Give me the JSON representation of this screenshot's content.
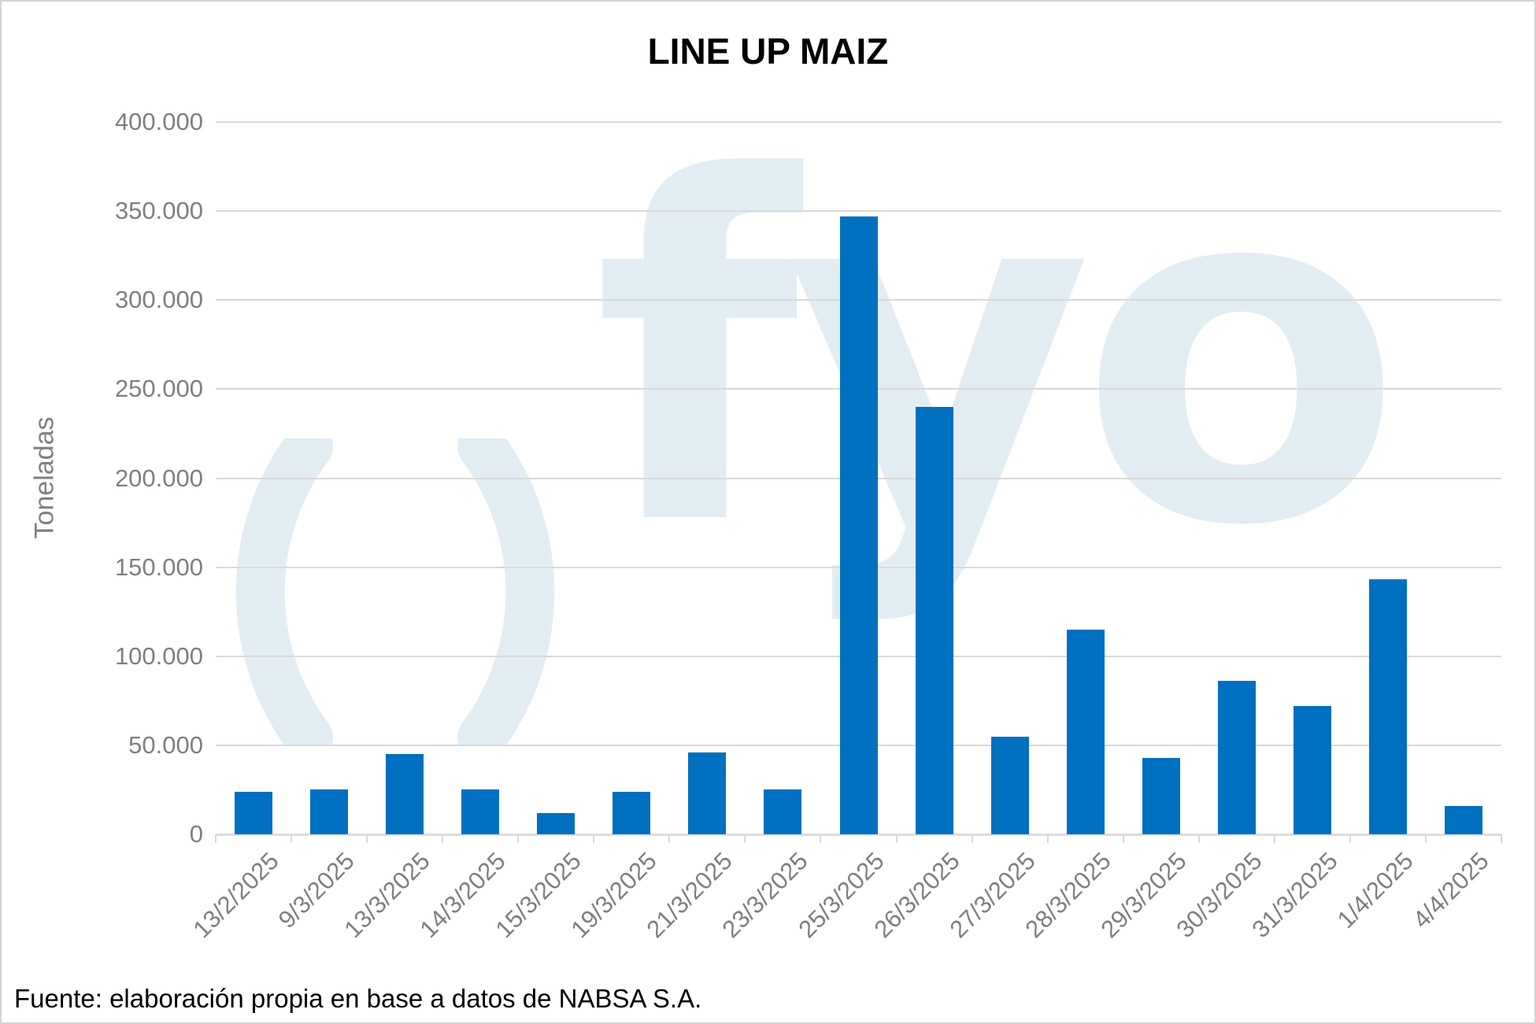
{
  "title": "LINE UP MAIZ",
  "footer": "Fuente: elaboración propia en base a datos de NABSA S.A.",
  "watermark": {
    "name": "fyo-logo-watermark",
    "parens": "()",
    "text": "fyo",
    "color": "#e2edf3"
  },
  "colors": {
    "bar": "#0070c0",
    "gridline": "#d9d9d9",
    "axis_line": "#dcdcdc",
    "axis_text": "#7f7f7f",
    "title_text": "#000000"
  },
  "chart_data": {
    "type": "bar",
    "title": "LINE UP MAIZ",
    "xlabel": "",
    "ylabel": "Toneladas",
    "ylim": [
      0,
      400000
    ],
    "ytick_step": 50000,
    "ytick_labels": [
      "0",
      "50.000",
      "100.000",
      "150.000",
      "200.000",
      "250.000",
      "300.000",
      "350.000",
      "400.000"
    ],
    "grid": true,
    "legend": false,
    "categories": [
      "13/2/2025",
      "9/3/2025",
      "13/3/2025",
      "14/3/2025",
      "15/3/2025",
      "19/3/2025",
      "21/3/2025",
      "23/3/2025",
      "25/3/2025",
      "26/3/2025",
      "27/3/2025",
      "28/3/2025",
      "29/3/2025",
      "30/3/2025",
      "31/3/2025",
      "1/4/2025",
      "4/4/2025"
    ],
    "values": [
      24000,
      25000,
      45000,
      25000,
      12000,
      24000,
      46000,
      25000,
      347000,
      240000,
      55000,
      115000,
      43000,
      86000,
      72000,
      143000,
      16000
    ]
  }
}
